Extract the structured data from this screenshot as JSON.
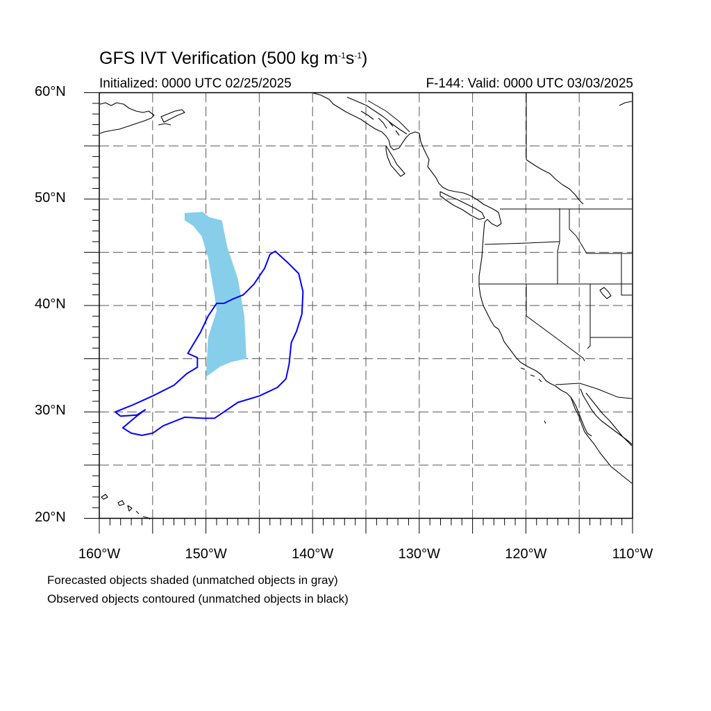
{
  "header": {
    "title_main": "GFS IVT Verification (500 kg m",
    "title_sup1": "-1",
    "title_s": "s",
    "title_sup2": "-1",
    "title_end": ")",
    "initialized": "Initialized: 0000 UTC 02/25/2025",
    "valid": "F-144: Valid: 0000 UTC 03/03/2025"
  },
  "map": {
    "projection": "cylindrical-equidistant",
    "lon_range": [
      -160,
      -110
    ],
    "lat_range": [
      20,
      60
    ],
    "grid_step_deg": 5,
    "grid": true
  },
  "axes": {
    "y_ticks": [
      {
        "lat": 60,
        "label": "60°N"
      },
      {
        "lat": 50,
        "label": "50°N"
      },
      {
        "lat": 40,
        "label": "40°N"
      },
      {
        "lat": 30,
        "label": "30°N"
      },
      {
        "lat": 20,
        "label": "20°N"
      }
    ],
    "x_ticks": [
      {
        "lon": -160,
        "label": "160°W"
      },
      {
        "lon": -150,
        "label": "150°W"
      },
      {
        "lon": -140,
        "label": "140°W"
      },
      {
        "lon": -130,
        "label": "130°W"
      },
      {
        "lon": -120,
        "label": "120°W"
      },
      {
        "lon": -110,
        "label": "110°W"
      }
    ]
  },
  "objects": {
    "forecast_color": "#87ceeb",
    "observed_color": "#0000ff",
    "forecast_object": {
      "matched": true,
      "polygon": [
        [
          -152.0,
          48.7
        ],
        [
          -150.3,
          48.8
        ],
        [
          -149.7,
          48.3
        ],
        [
          -148.5,
          48.0
        ],
        [
          -148.0,
          45.5
        ],
        [
          -147.0,
          42.5
        ],
        [
          -146.4,
          39.0
        ],
        [
          -146.2,
          35.0
        ],
        [
          -147.6,
          34.7
        ],
        [
          -148.6,
          34.3
        ],
        [
          -150.0,
          33.3
        ],
        [
          -149.8,
          37.0
        ],
        [
          -149.0,
          39.5
        ],
        [
          -149.2,
          41.0
        ],
        [
          -149.8,
          44.5
        ],
        [
          -150.4,
          46.5
        ],
        [
          -151.2,
          47.5
        ],
        [
          -152.0,
          48.0
        ]
      ]
    },
    "observed_object": {
      "matched": true,
      "polygon": [
        [
          -143.5,
          45.1
        ],
        [
          -142.3,
          44.0
        ],
        [
          -141.3,
          43.0
        ],
        [
          -140.9,
          41.3
        ],
        [
          -141.0,
          39.2
        ],
        [
          -141.5,
          37.6
        ],
        [
          -142.0,
          36.5
        ],
        [
          -142.2,
          34.5
        ],
        [
          -142.5,
          33.1
        ],
        [
          -143.3,
          32.3
        ],
        [
          -145.0,
          31.5
        ],
        [
          -147.0,
          30.9
        ],
        [
          -149.2,
          29.4
        ],
        [
          -150.3,
          29.4
        ],
        [
          -152.0,
          29.5
        ],
        [
          -154.0,
          28.7
        ],
        [
          -155.0,
          28.0
        ],
        [
          -156.0,
          27.8
        ],
        [
          -157.0,
          28.0
        ],
        [
          -157.8,
          28.5
        ],
        [
          -156.5,
          29.6
        ],
        [
          -155.7,
          30.2
        ],
        [
          -156.5,
          29.7
        ],
        [
          -158.0,
          29.6
        ],
        [
          -158.5,
          30.0
        ],
        [
          -157.0,
          30.6
        ],
        [
          -155.0,
          31.5
        ],
        [
          -153.0,
          32.5
        ],
        [
          -151.8,
          33.6
        ],
        [
          -150.8,
          34.2
        ],
        [
          -150.8,
          35.1
        ],
        [
          -151.7,
          35.5
        ],
        [
          -150.5,
          37.5
        ],
        [
          -149.8,
          39.0
        ],
        [
          -149.0,
          40.2
        ],
        [
          -148.3,
          40.2
        ],
        [
          -147.5,
          40.6
        ],
        [
          -146.5,
          41.0
        ],
        [
          -145.5,
          42.0
        ],
        [
          -144.5,
          43.5
        ],
        [
          -144.0,
          44.8
        ]
      ]
    }
  },
  "legend": {
    "line1": "Forecasted objects shaded (unmatched objects in gray)",
    "line2": "Observed objects contoured (unmatched objects in black)"
  }
}
